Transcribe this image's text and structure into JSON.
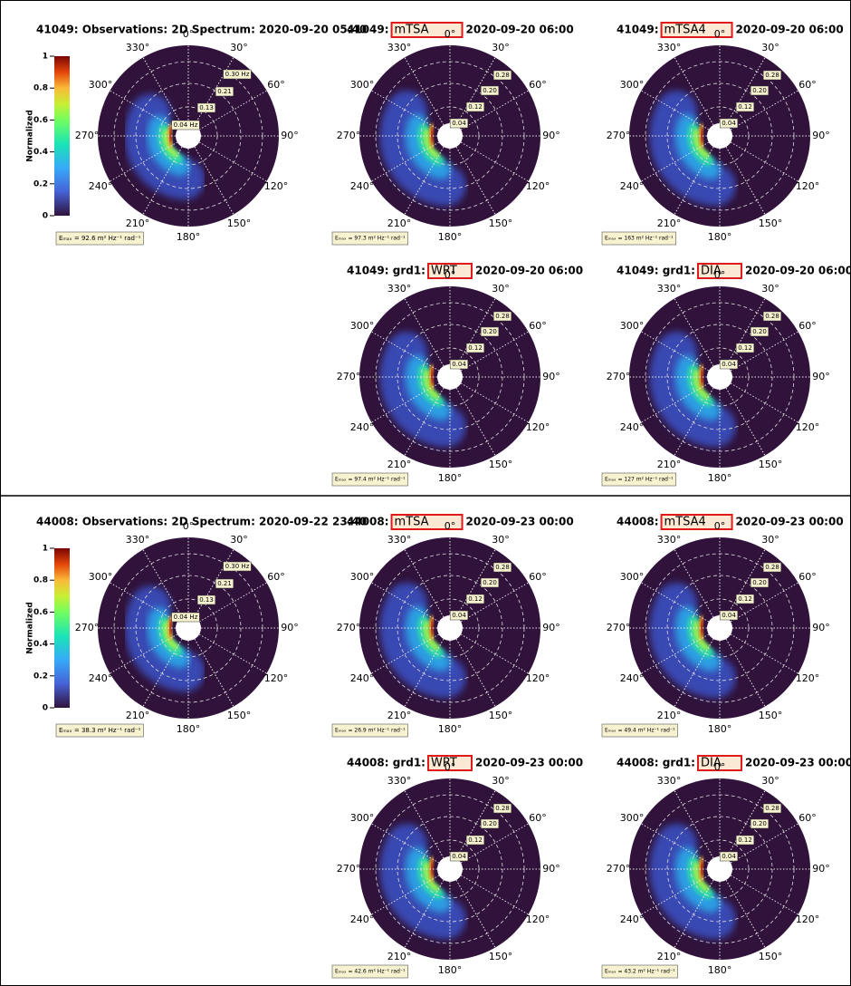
{
  "sections": [
    {
      "colorbar": {
        "label": "Normalized",
        "ticks": [
          0,
          0.2,
          0.4,
          0.6,
          0.8,
          1
        ]
      },
      "panels": [
        {
          "title": "41049: Observations: 2D Spectrum: 2020-09-20 05:40",
          "emax": "Eₘₐₓ = 92.6 m² Hz⁻¹ rad⁻¹"
        },
        {
          "prefix": "41049:",
          "model": "mTSA",
          "date": "2020-09-20 06:00",
          "emax": "Eₘₐₓ = 97.3 m² Hz⁻¹ rad⁻¹"
        },
        {
          "prefix": "41049:",
          "model": "mTSA4",
          "date": "2020-09-20 06:00",
          "emax": "Eₘₐₓ = 163 m² Hz⁻¹ rad⁻¹"
        },
        {
          "prefix": "41049: grd1:",
          "model": "WRT",
          "date": "2020-09-20 06:00",
          "emax": "Eₘₐₓ = 97.4 m² Hz⁻¹ rad⁻¹"
        },
        {
          "prefix": "41049: grd1:",
          "model": "DIA",
          "date": "2020-09-20 06:00",
          "emax": "Eₘₐₓ = 127 m² Hz⁻¹ rad⁻¹"
        }
      ]
    },
    {
      "colorbar": {
        "label": "Normalized",
        "ticks": [
          0,
          0.2,
          0.4,
          0.6,
          0.8,
          1
        ]
      },
      "panels": [
        {
          "title": "44008: Observations: 2D Spectrum: 2020-09-22 23:40",
          "emax": "Eₘₐₓ = 38.3 m² Hz⁻¹ rad⁻¹"
        },
        {
          "prefix": "44008:",
          "model": "mTSA",
          "date": "2020-09-23 00:00",
          "emax": "Eₘₐₓ = 26.9 m² Hz⁻¹ rad⁻¹"
        },
        {
          "prefix": "44008:",
          "model": "mTSA4",
          "date": "2020-09-23 00:00",
          "emax": "Eₘₐₓ = 49.4 m² Hz⁻¹ rad⁻¹"
        },
        {
          "prefix": "44008: grd1:",
          "model": "WRT",
          "date": "2020-09-23 00:00",
          "emax": "Eₘₐₓ = 42.6 m² Hz⁻¹ rad⁻¹"
        },
        {
          "prefix": "44008: grd1:",
          "model": "DIA",
          "date": "2020-09-23 00:00",
          "emax": "Eₘₐₓ = 43.2 m² Hz⁻¹ rad⁻¹"
        }
      ]
    }
  ],
  "directions": [
    "0°",
    "30°",
    "60°",
    "90°",
    "120°",
    "150°",
    "180°",
    "210°",
    "240°",
    "270°",
    "300°",
    "330°"
  ],
  "ring_labels_observations": [
    "0.04 Hz",
    "0.13",
    "0.21",
    "0.30 Hz"
  ],
  "ring_labels_model": [
    "0.04",
    "0.12",
    "0.20",
    "0.28"
  ]
}
